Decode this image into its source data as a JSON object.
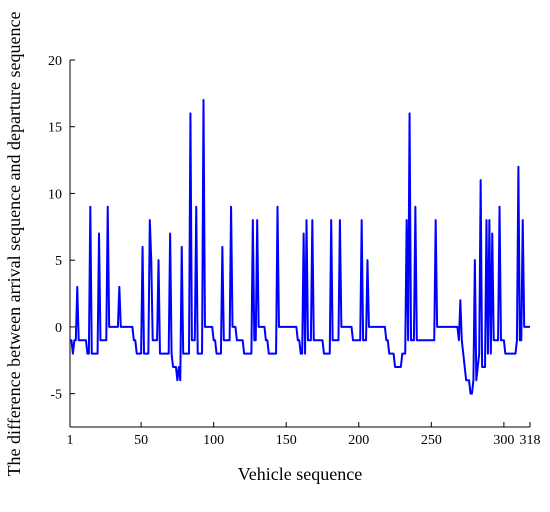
{
  "chart_data": {
    "type": "line",
    "xlabel": "Vehicle sequence",
    "ylabel": "The difference between arrival sequence and departure sequence",
    "xlim": [
      1,
      318
    ],
    "ylim": [
      -7.5,
      20
    ],
    "xticks": [
      1,
      50,
      100,
      150,
      200,
      250,
      300,
      318
    ],
    "yticks": [
      -5,
      0,
      5,
      10,
      15,
      20
    ],
    "x": [
      1,
      2,
      3,
      4,
      5,
      6,
      7,
      8,
      9,
      10,
      11,
      12,
      13,
      14,
      15,
      16,
      17,
      18,
      19,
      20,
      21,
      22,
      23,
      24,
      25,
      26,
      27,
      28,
      29,
      30,
      31,
      32,
      33,
      34,
      35,
      36,
      37,
      38,
      39,
      40,
      41,
      42,
      43,
      44,
      45,
      46,
      47,
      48,
      49,
      50,
      51,
      52,
      53,
      54,
      55,
      56,
      57,
      58,
      59,
      60,
      61,
      62,
      63,
      64,
      65,
      66,
      67,
      68,
      69,
      70,
      71,
      72,
      73,
      74,
      75,
      76,
      77,
      78,
      79,
      80,
      81,
      82,
      83,
      84,
      85,
      86,
      87,
      88,
      89,
      90,
      91,
      92,
      93,
      94,
      95,
      96,
      97,
      98,
      99,
      100,
      101,
      102,
      103,
      104,
      105,
      106,
      107,
      108,
      109,
      110,
      111,
      112,
      113,
      114,
      115,
      116,
      117,
      118,
      119,
      120,
      121,
      122,
      123,
      124,
      125,
      126,
      127,
      128,
      129,
      130,
      131,
      132,
      133,
      134,
      135,
      136,
      137,
      138,
      139,
      140,
      141,
      142,
      143,
      144,
      145,
      146,
      147,
      148,
      149,
      150,
      151,
      152,
      153,
      154,
      155,
      156,
      157,
      158,
      159,
      160,
      161,
      162,
      163,
      164,
      165,
      166,
      167,
      168,
      169,
      170,
      171,
      172,
      173,
      174,
      175,
      176,
      177,
      178,
      179,
      180,
      181,
      182,
      183,
      184,
      185,
      186,
      187,
      188,
      189,
      190,
      191,
      192,
      193,
      194,
      195,
      196,
      197,
      198,
      199,
      200,
      201,
      202,
      203,
      204,
      205,
      206,
      207,
      208,
      209,
      210,
      211,
      212,
      213,
      214,
      215,
      216,
      217,
      218,
      219,
      220,
      221,
      222,
      223,
      224,
      225,
      226,
      227,
      228,
      229,
      230,
      231,
      232,
      233,
      234,
      235,
      236,
      237,
      238,
      239,
      240,
      241,
      242,
      243,
      244,
      245,
      246,
      247,
      248,
      249,
      250,
      251,
      252,
      253,
      254,
      255,
      256,
      257,
      258,
      259,
      260,
      261,
      262,
      263,
      264,
      265,
      266,
      267,
      268,
      269,
      270,
      271,
      272,
      273,
      274,
      275,
      276,
      277,
      278,
      279,
      280,
      281,
      282,
      283,
      284,
      285,
      286,
      287,
      288,
      289,
      290,
      291,
      292,
      293,
      294,
      295,
      296,
      297,
      298,
      299,
      300,
      301,
      302,
      303,
      304,
      305,
      306,
      307,
      308,
      309,
      310,
      311,
      312,
      313,
      314,
      315,
      316,
      317,
      318
    ],
    "series": [
      {
        "color": "#0000ff",
        "values": [
          -1,
          -1,
          -2,
          -1,
          -1,
          3,
          -1,
          -1,
          -1,
          -1,
          -1,
          -1,
          -2,
          -2,
          9,
          -2,
          -2,
          -2,
          -2,
          -2,
          7,
          -1,
          -1,
          -1,
          -1,
          -1,
          9,
          0,
          0,
          0,
          0,
          0,
          0,
          0,
          3,
          0,
          0,
          0,
          0,
          0,
          0,
          0,
          0,
          0,
          -1,
          -1,
          -2,
          -2,
          -2,
          -2,
          6,
          -2,
          -2,
          -2,
          -2,
          8,
          5,
          -1,
          -1,
          -1,
          -1,
          5,
          -2,
          -2,
          -2,
          -2,
          -2,
          -2,
          -2,
          7,
          -2,
          -3,
          -3,
          -3,
          -4,
          -3,
          -4,
          6,
          -2,
          -2,
          -2,
          -2,
          -2,
          16,
          -1,
          -1,
          -1,
          9,
          -2,
          -2,
          -2,
          -2,
          17,
          0,
          0,
          0,
          0,
          0,
          0,
          -1,
          -1,
          -2,
          -2,
          -2,
          -2,
          6,
          -1,
          -1,
          -1,
          -1,
          -1,
          9,
          0,
          0,
          0,
          -1,
          -1,
          -1,
          -1,
          -1,
          -2,
          -2,
          -2,
          -2,
          -2,
          -2,
          8,
          -1,
          -1,
          8,
          0,
          0,
          0,
          0,
          0,
          -1,
          -1,
          -2,
          -2,
          -2,
          -2,
          -2,
          -2,
          9,
          0,
          0,
          0,
          0,
          0,
          0,
          0,
          0,
          0,
          0,
          0,
          0,
          0,
          -1,
          -1,
          -2,
          -2,
          7,
          -2,
          8,
          -1,
          -1,
          -1,
          8,
          -1,
          -1,
          -1,
          -1,
          -1,
          -1,
          -1,
          -2,
          -2,
          -2,
          -2,
          -2,
          8,
          -1,
          -1,
          -1,
          -1,
          -1,
          8,
          0,
          0,
          0,
          0,
          0,
          0,
          0,
          0,
          -1,
          -1,
          -1,
          -1,
          -1,
          -1,
          8,
          -1,
          -1,
          -1,
          5,
          0,
          0,
          0,
          0,
          0,
          0,
          0,
          0,
          0,
          0,
          0,
          0,
          -1,
          -1,
          -2,
          -2,
          -2,
          -2,
          -3,
          -3,
          -3,
          -3,
          -3,
          -2,
          -2,
          -2,
          8,
          -1,
          16,
          -1,
          -1,
          -1,
          9,
          -1,
          -1,
          -1,
          -1,
          -1,
          -1,
          -1,
          -1,
          -1,
          -1,
          -1,
          -1,
          -1,
          8,
          0,
          0,
          0,
          0,
          0,
          0,
          0,
          0,
          0,
          0,
          0,
          0,
          0,
          0,
          0,
          -1,
          2,
          -1,
          -2,
          -3,
          -4,
          -4,
          -4,
          -5,
          -5,
          -4,
          5,
          -4,
          -3,
          -2,
          11,
          -3,
          -3,
          -3,
          8,
          -2,
          8,
          -2,
          7,
          -1,
          -1,
          -1,
          -1,
          9,
          -1,
          -1,
          -1,
          -2,
          -2,
          -2,
          -2,
          -2,
          -2,
          -2,
          -2,
          -1,
          12,
          -1,
          -1,
          8,
          0,
          0,
          0,
          0,
          0
        ]
      }
    ]
  }
}
